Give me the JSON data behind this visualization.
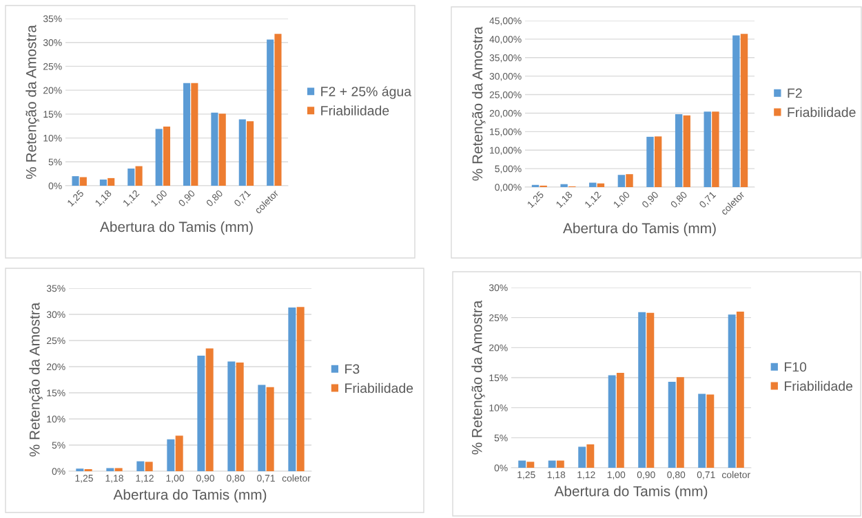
{
  "chart_data": [
    {
      "type": "bar",
      "xlabel": "Abertura do Tamis (mm)",
      "ylabel": "% Retenção da Amostra",
      "categories": [
        "1,25",
        "1,18",
        "1,12",
        "1,00",
        "0,90",
        "0,80",
        "0,71",
        "coletor"
      ],
      "series": [
        {
          "name": "F2 + 25% água",
          "color": "#5b9bd5",
          "values": [
            2.0,
            1.3,
            3.6,
            11.9,
            21.5,
            15.3,
            13.9,
            30.6
          ]
        },
        {
          "name": "Friabilidade",
          "color": "#ed7d31",
          "values": [
            1.8,
            1.6,
            4.1,
            12.4,
            21.5,
            15.1,
            13.5,
            31.8
          ]
        }
      ],
      "ylim": [
        0,
        35
      ],
      "yticks": [
        {
          "value": 0,
          "label": "0%"
        },
        {
          "value": 5,
          "label": "5%"
        },
        {
          "value": 10,
          "label": "10%"
        },
        {
          "value": 15,
          "label": "15%"
        },
        {
          "value": 20,
          "label": "20%"
        },
        {
          "value": 25,
          "label": "25%"
        },
        {
          "value": 30,
          "label": "30%"
        },
        {
          "value": 35,
          "label": "35%"
        }
      ],
      "grid": "y",
      "legend": "right"
    },
    {
      "type": "bar",
      "xlabel": "Abertura do Tamis (mm)",
      "ylabel": "% Retenção da Amostra",
      "categories": [
        "1,25",
        "1,18",
        "1,12",
        "1,00",
        "0,90",
        "0,80",
        "0,71",
        "coletor"
      ],
      "series": [
        {
          "name": "F2",
          "color": "#5b9bd5",
          "values": [
            0.6,
            0.8,
            1.2,
            3.3,
            13.6,
            19.7,
            20.4,
            41.0
          ]
        },
        {
          "name": "Friabilidade",
          "color": "#ed7d31",
          "values": [
            0.4,
            0.2,
            1.0,
            3.5,
            13.7,
            19.4,
            20.4,
            41.4
          ]
        }
      ],
      "ylim": [
        0,
        45
      ],
      "yticks": [
        {
          "value": 0,
          "label": "0,00%"
        },
        {
          "value": 5,
          "label": "5,00%"
        },
        {
          "value": 10,
          "label": "10,00%"
        },
        {
          "value": 15,
          "label": "15,00%"
        },
        {
          "value": 20,
          "label": "20,00%"
        },
        {
          "value": 25,
          "label": "25,00%"
        },
        {
          "value": 30,
          "label": "30,00%"
        },
        {
          "value": 35,
          "label": "35,00%"
        },
        {
          "value": 40,
          "label": "40,00%"
        },
        {
          "value": 45,
          "label": "45,00%"
        }
      ],
      "grid": "y",
      "legend": "right"
    },
    {
      "type": "bar",
      "xlabel": "Abertura do Tamis (mm)",
      "ylabel": "% Retenção da Amostra",
      "categories": [
        "1,25",
        "1,18",
        "1,12",
        "1,00",
        "0,90",
        "0,80",
        "0,71",
        "coletor"
      ],
      "series": [
        {
          "name": "F3",
          "color": "#5b9bd5",
          "values": [
            0.5,
            0.6,
            1.9,
            6.1,
            22.1,
            21.0,
            16.5,
            31.3
          ]
        },
        {
          "name": "Friabilidade",
          "color": "#ed7d31",
          "values": [
            0.4,
            0.6,
            1.8,
            6.8,
            23.5,
            20.8,
            16.1,
            31.4
          ]
        }
      ],
      "ylim": [
        0,
        35
      ],
      "yticks": [
        {
          "value": 0,
          "label": "0%"
        },
        {
          "value": 5,
          "label": "5%"
        },
        {
          "value": 10,
          "label": "10%"
        },
        {
          "value": 15,
          "label": "15%"
        },
        {
          "value": 20,
          "label": "20%"
        },
        {
          "value": 25,
          "label": "25%"
        },
        {
          "value": 30,
          "label": "30%"
        },
        {
          "value": 35,
          "label": "35%"
        }
      ],
      "grid": "y",
      "legend": "right"
    },
    {
      "type": "bar",
      "xlabel": "Abertura do Tamis (mm)",
      "ylabel": "% Retenção da Amostra",
      "categories": [
        "1,25",
        "1,18",
        "1,12",
        "1,00",
        "0,90",
        "0,80",
        "0,71",
        "coletor"
      ],
      "series": [
        {
          "name": "F10",
          "color": "#5b9bd5",
          "values": [
            1.2,
            1.2,
            3.5,
            15.4,
            25.9,
            14.3,
            12.3,
            25.5
          ]
        },
        {
          "name": "Friabilidade",
          "color": "#ed7d31",
          "values": [
            1.0,
            1.2,
            3.9,
            15.8,
            25.8,
            15.1,
            12.2,
            26.0
          ]
        }
      ],
      "ylim": [
        0,
        30
      ],
      "yticks": [
        {
          "value": 0,
          "label": "0%"
        },
        {
          "value": 5,
          "label": "5%"
        },
        {
          "value": 10,
          "label": "10%"
        },
        {
          "value": 15,
          "label": "15%"
        },
        {
          "value": 20,
          "label": "20%"
        },
        {
          "value": 25,
          "label": "25%"
        },
        {
          "value": 30,
          "label": "30%"
        }
      ],
      "grid": "y",
      "legend": "right"
    }
  ]
}
